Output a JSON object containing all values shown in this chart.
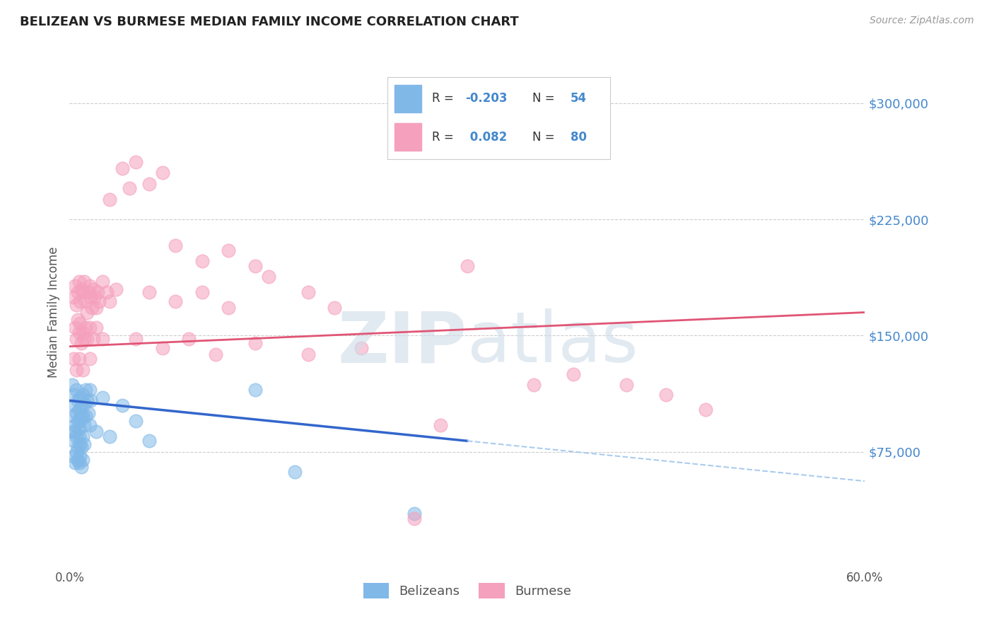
{
  "title": "BELIZEAN VS BURMESE MEDIAN FAMILY INCOME CORRELATION CHART",
  "source": "Source: ZipAtlas.com",
  "ylabel": "Median Family Income",
  "xlim": [
    0.0,
    60.0
  ],
  "ylim": [
    0,
    330000
  ],
  "watermark": "ZIPatlas",
  "belizean_color": "#80b8e8",
  "burmese_color": "#f5a0bc",
  "trend_blue": "#3366cc",
  "trend_pink": "#e05575",
  "trend_blue_dash": "#aaccee",
  "title_color": "#222222",
  "axis_label_color": "#4488cc",
  "grid_color": "#cccccc",
  "background_color": "#ffffff",
  "legend_box_color": "#f0f0f0",
  "yticks": [
    75000,
    150000,
    225000,
    300000
  ],
  "ytick_labels": [
    "$75,000",
    "$150,000",
    "$225,000",
    "$300,000"
  ],
  "blue_trend_x0": 0.0,
  "blue_trend_y0": 108000,
  "blue_trend_x1": 30.0,
  "blue_trend_y1": 82000,
  "blue_dash_x0": 30.0,
  "blue_dash_y0": 82000,
  "blue_dash_x1": 60.0,
  "blue_dash_y1": 56000,
  "pink_trend_x0": 0.0,
  "pink_trend_y0": 143000,
  "pink_trend_x1": 60.0,
  "pink_trend_y1": 165000,
  "belizean_points": [
    [
      0.2,
      118000
    ],
    [
      0.3,
      112000
    ],
    [
      0.4,
      105000
    ],
    [
      0.5,
      115000
    ],
    [
      0.6,
      108000
    ],
    [
      0.7,
      102000
    ],
    [
      0.8,
      110000
    ],
    [
      0.9,
      98000
    ],
    [
      1.0,
      112000
    ],
    [
      1.1,
      106000
    ],
    [
      1.2,
      115000
    ],
    [
      1.3,
      108000
    ],
    [
      1.4,
      100000
    ],
    [
      1.5,
      115000
    ],
    [
      1.6,
      108000
    ],
    [
      0.3,
      98000
    ],
    [
      0.4,
      92000
    ],
    [
      0.5,
      100000
    ],
    [
      0.6,
      95000
    ],
    [
      0.7,
      90000
    ],
    [
      0.8,
      95000
    ],
    [
      0.9,
      105000
    ],
    [
      1.0,
      98000
    ],
    [
      1.1,
      92000
    ],
    [
      1.2,
      98000
    ],
    [
      0.2,
      88000
    ],
    [
      0.3,
      82000
    ],
    [
      0.4,
      88000
    ],
    [
      0.5,
      85000
    ],
    [
      0.6,
      78000
    ],
    [
      0.7,
      85000
    ],
    [
      0.8,
      80000
    ],
    [
      0.9,
      78000
    ],
    [
      1.0,
      85000
    ],
    [
      1.1,
      80000
    ],
    [
      0.3,
      72000
    ],
    [
      0.4,
      68000
    ],
    [
      0.5,
      75000
    ],
    [
      0.6,
      70000
    ],
    [
      0.7,
      68000
    ],
    [
      0.8,
      72000
    ],
    [
      0.9,
      65000
    ],
    [
      1.0,
      70000
    ],
    [
      1.5,
      92000
    ],
    [
      2.0,
      88000
    ],
    [
      2.5,
      110000
    ],
    [
      3.0,
      85000
    ],
    [
      4.0,
      105000
    ],
    [
      5.0,
      95000
    ],
    [
      6.0,
      82000
    ],
    [
      14.0,
      115000
    ],
    [
      17.0,
      62000
    ],
    [
      26.0,
      35000
    ]
  ],
  "burmese_points": [
    [
      0.3,
      175000
    ],
    [
      0.4,
      182000
    ],
    [
      0.5,
      170000
    ],
    [
      0.6,
      178000
    ],
    [
      0.7,
      185000
    ],
    [
      0.8,
      172000
    ],
    [
      0.9,
      180000
    ],
    [
      1.0,
      178000
    ],
    [
      1.1,
      185000
    ],
    [
      1.2,
      172000
    ],
    [
      1.3,
      165000
    ],
    [
      1.4,
      178000
    ],
    [
      1.5,
      182000
    ],
    [
      1.6,
      175000
    ],
    [
      1.7,
      168000
    ],
    [
      1.8,
      180000
    ],
    [
      1.9,
      175000
    ],
    [
      2.0,
      168000
    ],
    [
      2.1,
      178000
    ],
    [
      2.2,
      172000
    ],
    [
      2.5,
      185000
    ],
    [
      2.8,
      178000
    ],
    [
      3.0,
      172000
    ],
    [
      3.5,
      180000
    ],
    [
      0.4,
      155000
    ],
    [
      0.5,
      148000
    ],
    [
      0.6,
      160000
    ],
    [
      0.7,
      152000
    ],
    [
      0.8,
      158000
    ],
    [
      0.9,
      145000
    ],
    [
      1.0,
      152000
    ],
    [
      1.1,
      148000
    ],
    [
      1.2,
      155000
    ],
    [
      1.3,
      148000
    ],
    [
      1.5,
      155000
    ],
    [
      1.8,
      148000
    ],
    [
      2.0,
      155000
    ],
    [
      2.5,
      148000
    ],
    [
      0.3,
      135000
    ],
    [
      0.5,
      128000
    ],
    [
      0.7,
      135000
    ],
    [
      1.0,
      128000
    ],
    [
      1.5,
      135000
    ],
    [
      4.0,
      258000
    ],
    [
      5.0,
      262000
    ],
    [
      6.0,
      248000
    ],
    [
      7.0,
      255000
    ],
    [
      3.0,
      238000
    ],
    [
      4.5,
      245000
    ],
    [
      8.0,
      208000
    ],
    [
      10.0,
      198000
    ],
    [
      12.0,
      205000
    ],
    [
      14.0,
      195000
    ],
    [
      6.0,
      178000
    ],
    [
      8.0,
      172000
    ],
    [
      10.0,
      178000
    ],
    [
      12.0,
      168000
    ],
    [
      15.0,
      188000
    ],
    [
      18.0,
      178000
    ],
    [
      20.0,
      168000
    ],
    [
      5.0,
      148000
    ],
    [
      7.0,
      142000
    ],
    [
      9.0,
      148000
    ],
    [
      11.0,
      138000
    ],
    [
      14.0,
      145000
    ],
    [
      18.0,
      138000
    ],
    [
      22.0,
      142000
    ],
    [
      30.0,
      195000
    ],
    [
      35.0,
      118000
    ],
    [
      38.0,
      125000
    ],
    [
      42.0,
      118000
    ],
    [
      45.0,
      112000
    ],
    [
      28.0,
      92000
    ],
    [
      48.0,
      102000
    ],
    [
      26.0,
      32000
    ]
  ]
}
